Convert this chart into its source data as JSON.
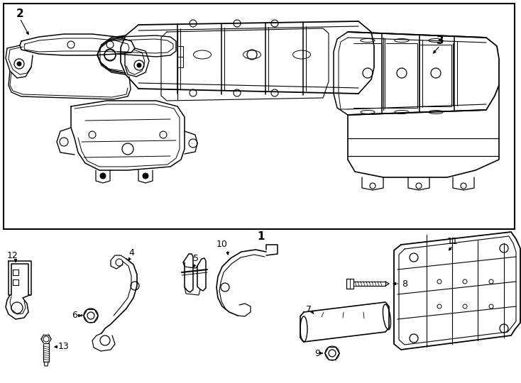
{
  "bg_color": "#ffffff",
  "line_color": "#000000",
  "figsize": [
    7.34,
    5.4
  ],
  "dpi": 100
}
